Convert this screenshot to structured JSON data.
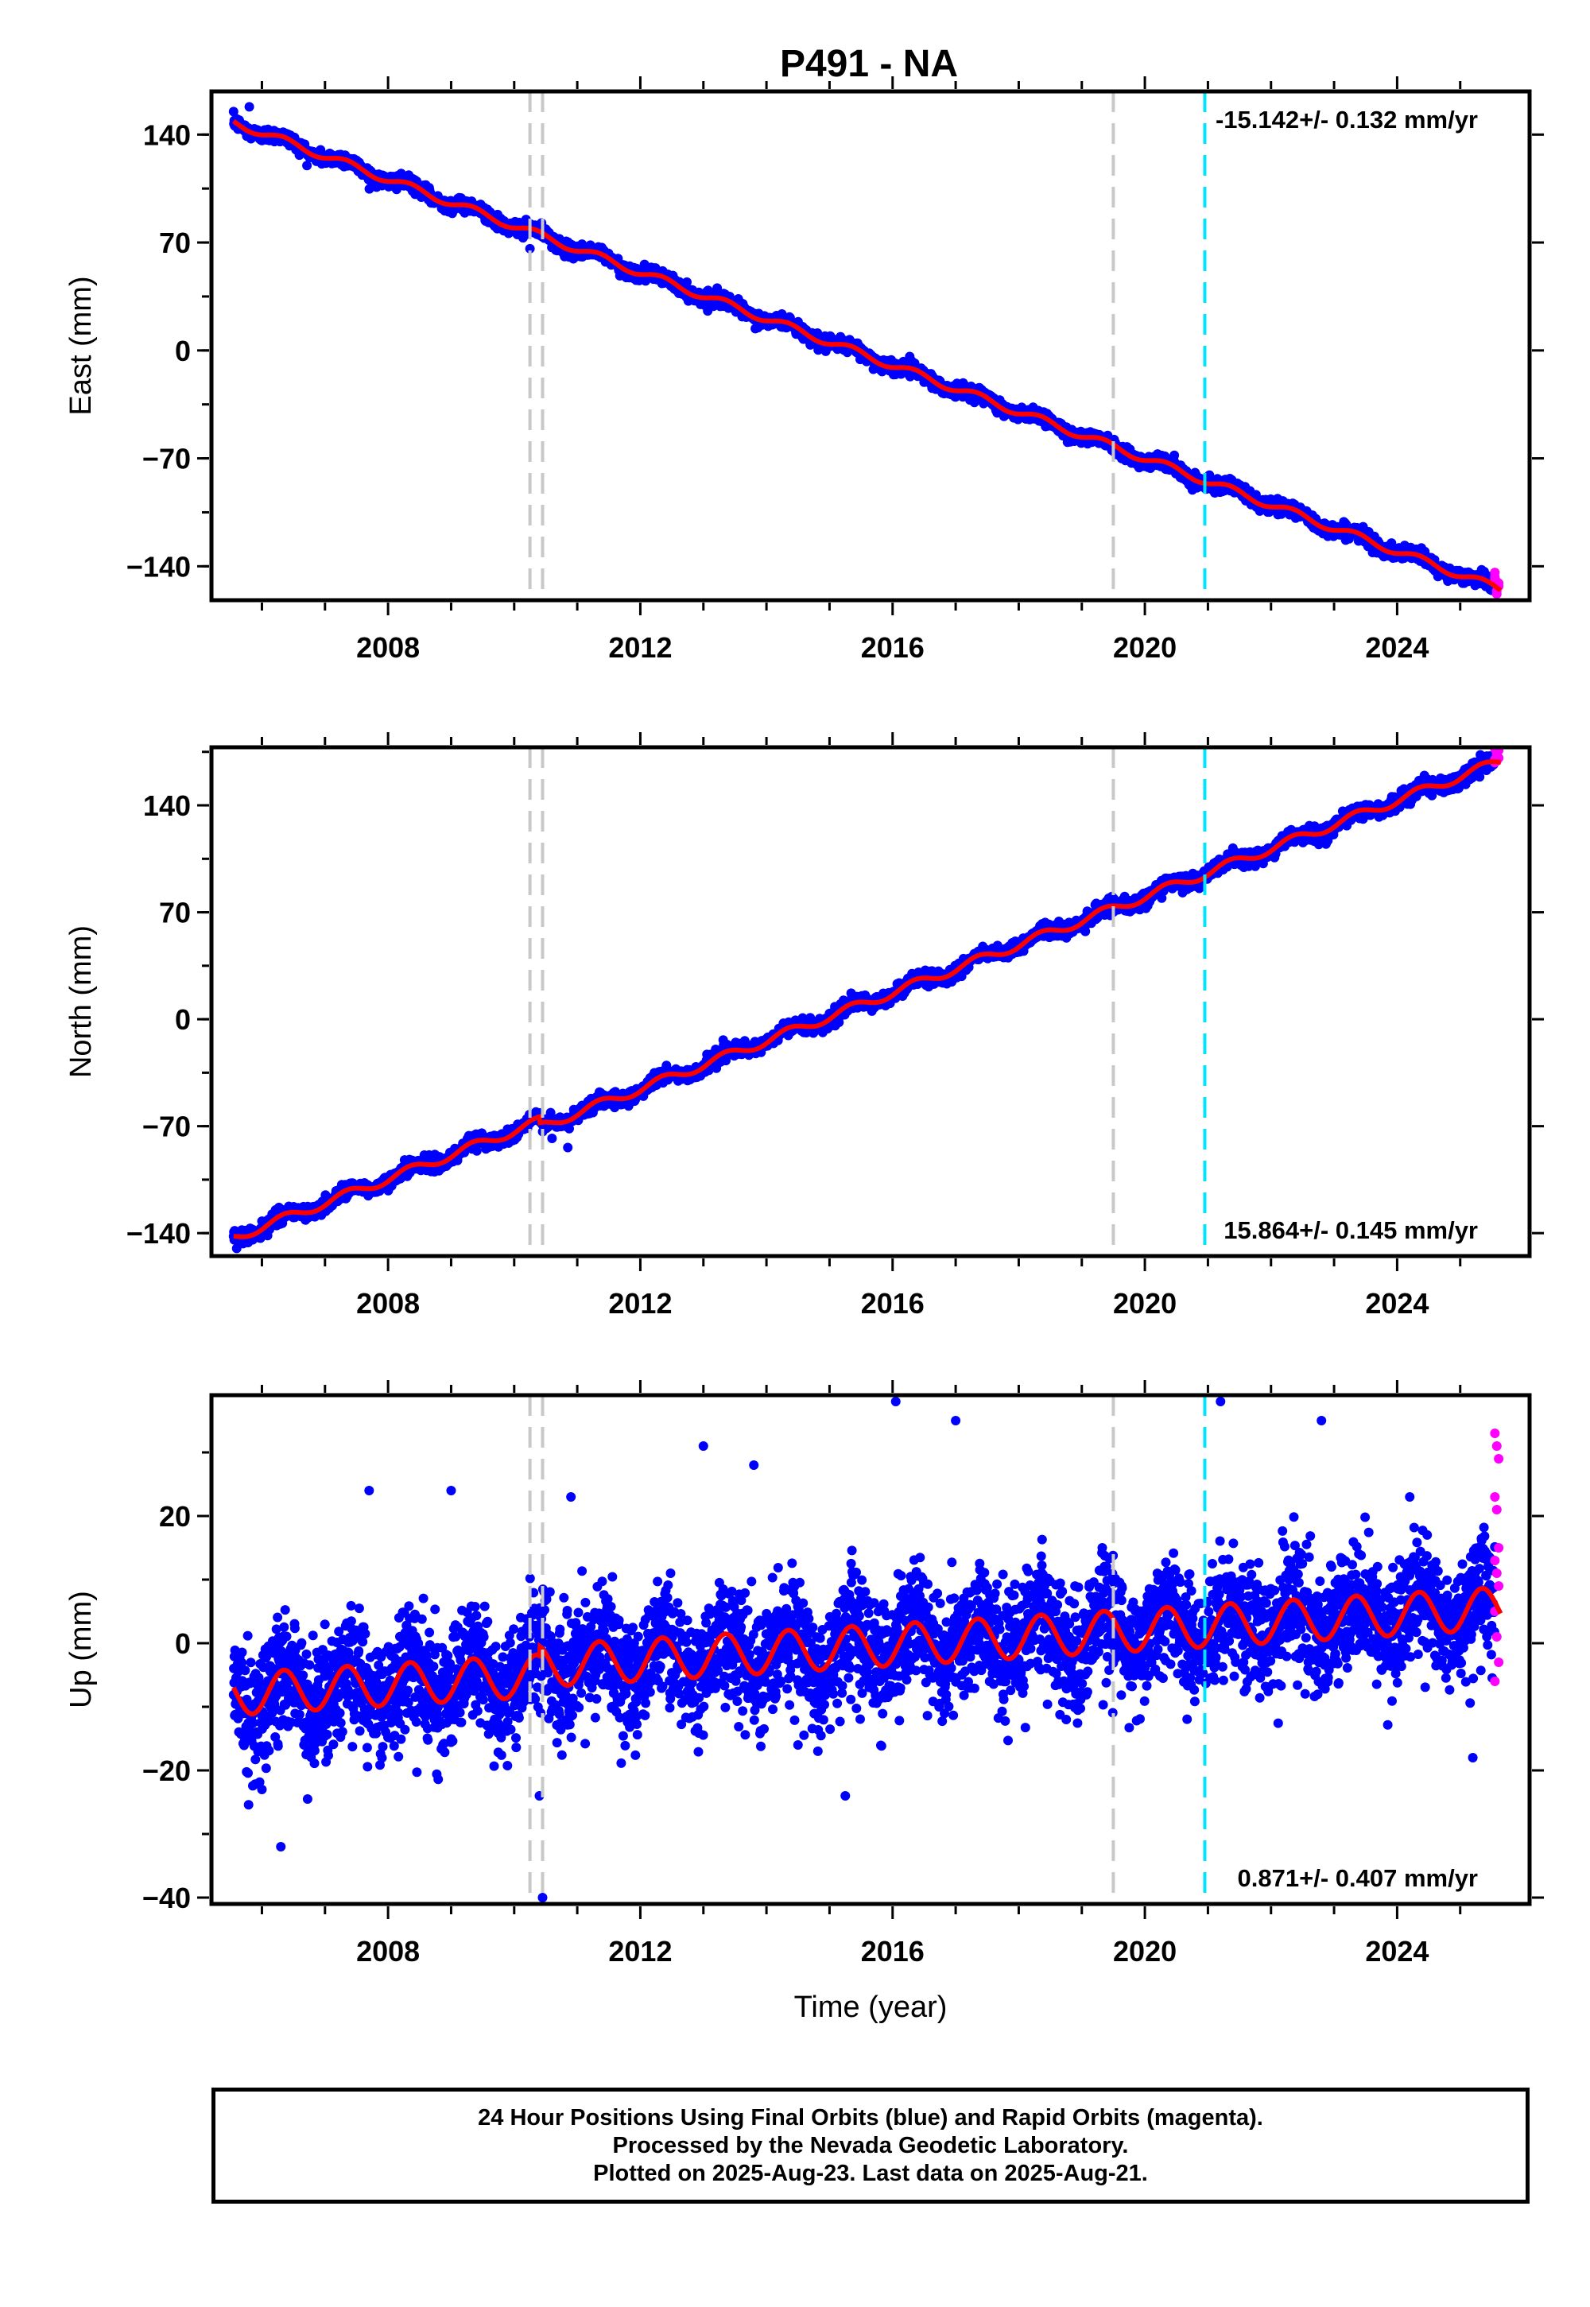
{
  "title": "P491 - NA",
  "colors": {
    "final_orbits": "#0000ff",
    "rapid_orbits": "#ff00ff",
    "model": "#ff0000",
    "equipment_change": "#c8c8c8",
    "earthquake": "#00e5ff"
  },
  "footer": [
    "24 Hour Positions Using Final Orbits (blue) and Rapid Orbits (magenta).",
    "Processed by the Nevada Geodetic Laboratory.",
    "Plotted on 2025-Aug-23. Last data on 2025-Aug-21."
  ],
  "chart_data": [
    {
      "type": "scatter",
      "component": "east",
      "ylabel": "East (mm)",
      "xlabel": "",
      "xlim": [
        2005.2,
        2026.1
      ],
      "ylim": [
        -162,
        168
      ],
      "xticks": [
        2008,
        2012,
        2016,
        2020,
        2024
      ],
      "yticks": [
        -140,
        -70,
        0,
        70,
        140
      ],
      "rate_label": "-15.142+/- 0.132 mm/yr",
      "rate_position": "top-right",
      "start": {
        "year": 2005.55,
        "value": 148
      },
      "end": {
        "year": 2025.64,
        "value": -155
      },
      "seasonal_amplitude": 2.5,
      "noise": 2.2,
      "step_at_2010_4": 0,
      "rapid_points": [
        -147,
        -150,
        -153,
        -144,
        -156,
        -151,
        -149,
        -158
      ],
      "outliers": [
        {
          "x": 2005.8,
          "y": 158
        },
        {
          "x": 2010.25,
          "y": 66
        },
        {
          "x": 2014.6,
          "y": 8
        }
      ],
      "equipment_changes": [
        2010.25,
        2010.45,
        2019.5
      ],
      "earthquakes": [
        2020.95
      ],
      "grid": false
    },
    {
      "type": "scatter",
      "component": "north",
      "ylabel": "North (mm)",
      "xlabel": "",
      "xlim": [
        2005.2,
        2026.1
      ],
      "ylim": [
        -155,
        178
      ],
      "xticks": [
        2008,
        2012,
        2016,
        2020,
        2024
      ],
      "yticks": [
        -140,
        -70,
        0,
        70,
        140
      ],
      "rate_label": "15.864+/- 0.145 mm/yr",
      "rate_position": "bottom-right",
      "start": {
        "year": 2005.55,
        "value": -143
      },
      "end": {
        "year": 2025.64,
        "value": 173
      },
      "seasonal_amplitude": 3.0,
      "noise": 2.3,
      "step_at_2010_4": -4,
      "rapid_points": [
        170,
        173,
        176,
        168,
        174,
        171,
        177,
        169
      ],
      "outliers": [
        {
          "x": 2010.6,
          "y": -78
        },
        {
          "x": 2010.85,
          "y": -84
        },
        {
          "x": 2005.6,
          "y": -150
        }
      ],
      "equipment_changes": [
        2010.25,
        2010.45,
        2019.5
      ],
      "earthquakes": [
        2020.95
      ],
      "grid": false
    },
    {
      "type": "scatter",
      "component": "up",
      "ylabel": "Up (mm)",
      "xlabel": "Time (year)",
      "xlim": [
        2005.2,
        2026.1
      ],
      "ylim": [
        -41,
        39
      ],
      "xticks": [
        2008,
        2012,
        2016,
        2020,
        2024
      ],
      "yticks": [
        -40,
        -20,
        0,
        20
      ],
      "rate_label": "0.871+/- 0.407 mm/yr",
      "rate_position": "bottom-right",
      "start": {
        "year": 2005.55,
        "value": -8
      },
      "end": {
        "year": 2025.64,
        "value": 4
      },
      "seasonal_amplitude": 3.3,
      "noise": 4.6,
      "step_at_2010_4": 1.5,
      "rapid_points": [
        33,
        31,
        29,
        23,
        21,
        15,
        13,
        11,
        9,
        5,
        1,
        -3,
        -6
      ],
      "outliers": [
        {
          "x": 2006.3,
          "y": -32
        },
        {
          "x": 2010.45,
          "y": -40
        },
        {
          "x": 2010.4,
          "y": -24
        },
        {
          "x": 2015.25,
          "y": -24
        },
        {
          "x": 2016.05,
          "y": 38
        },
        {
          "x": 2017.0,
          "y": 35
        },
        {
          "x": 2021.2,
          "y": 38
        },
        {
          "x": 2022.8,
          "y": 35
        },
        {
          "x": 2013.0,
          "y": 31
        },
        {
          "x": 2013.8,
          "y": 28
        },
        {
          "x": 2025.2,
          "y": -18
        },
        {
          "x": 2006.0,
          "y": -23
        },
        {
          "x": 2007.7,
          "y": 24
        },
        {
          "x": 2010.9,
          "y": 23
        },
        {
          "x": 2024.2,
          "y": 23
        },
        {
          "x": 2009.0,
          "y": 24
        },
        {
          "x": 2014.5,
          "y": -16
        }
      ],
      "equipment_changes": [
        2010.25,
        2010.45,
        2019.5
      ],
      "earthquakes": [
        2020.95
      ],
      "grid": false
    }
  ]
}
